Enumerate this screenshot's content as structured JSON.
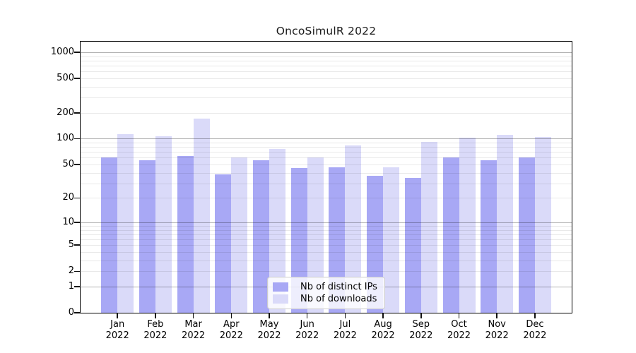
{
  "chart_data": {
    "type": "bar",
    "title": "OncoSimulR 2022",
    "categories": [
      "Jan",
      "Feb",
      "Mar",
      "Apr",
      "May",
      "Jun",
      "Jul",
      "Aug",
      "Sep",
      "Oct",
      "Nov",
      "Dec"
    ],
    "year_label": "2022",
    "series": [
      {
        "name": "Nb of distinct IPs",
        "color": "#a8a8f5",
        "values": [
          60,
          56,
          63,
          38,
          56,
          45,
          46,
          37,
          35,
          61,
          56,
          61
        ]
      },
      {
        "name": "Nb of downloads",
        "color": "#dadaf9",
        "values": [
          113,
          106,
          170,
          61,
          76,
          60,
          84,
          46,
          91,
          103,
          110,
          105
        ]
      }
    ],
    "y_scale": "log1p",
    "ylim": [
      0,
      1350
    ],
    "y_ticks": [
      0,
      1,
      2,
      5,
      10,
      20,
      50,
      100,
      200,
      500,
      1000
    ],
    "y_major_gridlines": [
      1,
      10,
      100,
      1000
    ],
    "y_minor_gridlines": [
      2,
      3,
      4,
      5,
      6,
      7,
      8,
      9,
      20,
      30,
      40,
      50,
      60,
      70,
      80,
      90,
      200,
      300,
      400,
      500,
      600,
      700,
      800,
      900
    ],
    "grid": "on",
    "legend_position": "lower center"
  }
}
